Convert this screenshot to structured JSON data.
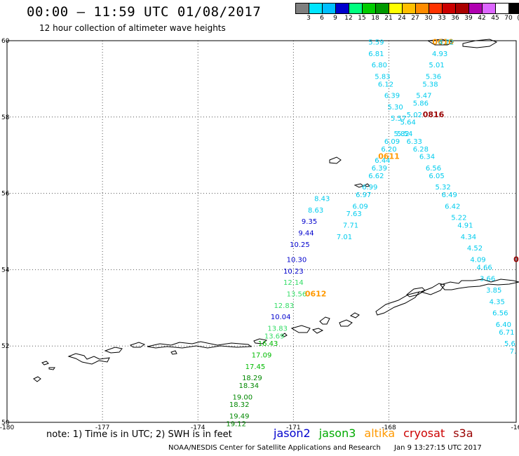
{
  "header": {
    "title": "00:00 – 11:59 UTC 01/08/2017",
    "subtitle": "12 hour collection of altimeter wave heights"
  },
  "colorbar": {
    "colors": [
      "#7f7f7f",
      "#00e5ff",
      "#00bfff",
      "#0000cd",
      "#00ff7f",
      "#00cc00",
      "#009900",
      "#ffff00",
      "#ffbf00",
      "#ff8c00",
      "#ff3300",
      "#cc0000",
      "#aa0000",
      "#b000b0",
      "#dd66ff",
      "#ffffff",
      "#000000"
    ],
    "labels": [
      "3",
      "6",
      "9",
      "12",
      "15",
      "18",
      "21",
      "24",
      "27",
      "30",
      "33",
      "36",
      "39",
      "42",
      "45",
      "70",
      "(ft)"
    ]
  },
  "axes": {
    "x_ticks": [
      "-180",
      "-177",
      "-174",
      "-171",
      "-168",
      "-16"
    ],
    "y_ticks": [
      "60",
      "58",
      "56",
      "54",
      "52",
      "50"
    ]
  },
  "chart_data": {
    "type": "scatter",
    "x_range": [
      -180,
      -164
    ],
    "y_range": [
      50,
      60
    ],
    "series": [
      {
        "name": "jason2",
        "values": [
          {
            "lon": -170.9,
            "lat": 54.2,
            "v": "10.30"
          },
          {
            "lon": -171.0,
            "lat": 53.9,
            "v": "10.23"
          },
          {
            "lon": -171.4,
            "lat": 52.7,
            "v": "10.04"
          },
          {
            "lon": -170.8,
            "lat": 54.6,
            "v": "10.25"
          },
          {
            "lon": -170.6,
            "lat": 54.9,
            "v": "9.44"
          },
          {
            "lon": -170.5,
            "lat": 55.2,
            "v": "9.35"
          },
          {
            "lon": -170.3,
            "lat": 55.5,
            "v": "8.63"
          },
          {
            "lon": -170.1,
            "lat": 55.8,
            "v": "8.43"
          }
        ]
      },
      {
        "name": "jason3",
        "values": [
          {
            "lon": -171.0,
            "lat": 53.6,
            "v": "12.14"
          },
          {
            "lon": -170.9,
            "lat": 53.3,
            "v": "13.56"
          },
          {
            "lon": -171.3,
            "lat": 53.0,
            "v": "12.83"
          },
          {
            "lon": -171.5,
            "lat": 52.4,
            "v": "13.83"
          },
          {
            "lon": -171.6,
            "lat": 52.2,
            "v": "13.69"
          },
          {
            "lon": -171.8,
            "lat": 52.0,
            "v": "16.43"
          },
          {
            "lon": -172.0,
            "lat": 51.7,
            "v": "17.09"
          },
          {
            "lon": -172.2,
            "lat": 51.4,
            "v": "17.45"
          },
          {
            "lon": -172.3,
            "lat": 51.1,
            "v": "18.29"
          },
          {
            "lon": -172.4,
            "lat": 50.9,
            "v": "18.34"
          },
          {
            "lon": -172.6,
            "lat": 50.6,
            "v": "19.00"
          },
          {
            "lon": -172.7,
            "lat": 50.4,
            "v": "18.32"
          },
          {
            "lon": -172.7,
            "lat": 50.1,
            "v": "19.49"
          },
          {
            "lon": -172.8,
            "lat": 49.9,
            "v": "19.12"
          }
        ]
      },
      {
        "name": "altika",
        "values": [
          {
            "lon": -170.3,
            "lat": 53.3,
            "v": "0612",
            "label": true
          },
          {
            "lon": -168.0,
            "lat": 56.9,
            "v": "0611",
            "label": true
          },
          {
            "lon": -166.3,
            "lat": 59.9,
            "v": "0610",
            "label": true
          }
        ]
      },
      {
        "name": "cryosat",
        "values": [
          {
            "lon": -166.6,
            "lat": 58.0,
            "v": "0816",
            "label": true
          },
          {
            "lon": -164.0,
            "lat": 54.2,
            "v": "0",
            "label": true
          }
        ]
      },
      {
        "name": "s3a",
        "values": [
          {
            "lon": -168.4,
            "lat": 59.9,
            "v": "5.59"
          },
          {
            "lon": -168.4,
            "lat": 59.6,
            "v": "6.81"
          },
          {
            "lon": -168.3,
            "lat": 59.3,
            "v": "6.80"
          },
          {
            "lon": -168.2,
            "lat": 59.0,
            "v": "5.83"
          },
          {
            "lon": -168.1,
            "lat": 58.8,
            "v": "6.12"
          },
          {
            "lon": -167.9,
            "lat": 58.5,
            "v": "6.39"
          },
          {
            "lon": -167.8,
            "lat": 58.2,
            "v": "5.30"
          },
          {
            "lon": -167.7,
            "lat": 57.9,
            "v": "5.57"
          },
          {
            "lon": -167.6,
            "lat": 57.5,
            "v": "5.82"
          },
          {
            "lon": -167.9,
            "lat": 57.3,
            "v": "6.09"
          },
          {
            "lon": -168.0,
            "lat": 57.1,
            "v": "6.20"
          },
          {
            "lon": -168.2,
            "lat": 56.8,
            "v": "6.44"
          },
          {
            "lon": -168.3,
            "lat": 56.6,
            "v": "6.39"
          },
          {
            "lon": -168.4,
            "lat": 56.4,
            "v": "6.62"
          },
          {
            "lon": -168.6,
            "lat": 56.1,
            "v": "6.99"
          },
          {
            "lon": -168.8,
            "lat": 55.9,
            "v": "6.97"
          },
          {
            "lon": -168.9,
            "lat": 55.6,
            "v": "6.09"
          },
          {
            "lon": -169.1,
            "lat": 55.4,
            "v": "7.63"
          },
          {
            "lon": -169.2,
            "lat": 55.1,
            "v": "7.71"
          },
          {
            "lon": -169.4,
            "lat": 54.8,
            "v": "7.01"
          },
          {
            "lon": -166.2,
            "lat": 59.9,
            "v": "4.72"
          },
          {
            "lon": -166.4,
            "lat": 59.6,
            "v": "4.93"
          },
          {
            "lon": -166.5,
            "lat": 59.3,
            "v": "5.01"
          },
          {
            "lon": -166.6,
            "lat": 59.0,
            "v": "5.36"
          },
          {
            "lon": -166.7,
            "lat": 58.8,
            "v": "5.38"
          },
          {
            "lon": -166.9,
            "lat": 58.5,
            "v": "5.47"
          },
          {
            "lon": -167.0,
            "lat": 58.3,
            "v": "5.86"
          },
          {
            "lon": -167.2,
            "lat": 58.0,
            "v": "5.02"
          },
          {
            "lon": -167.4,
            "lat": 57.8,
            "v": "5.64"
          },
          {
            "lon": -167.5,
            "lat": 57.5,
            "v": "5.54"
          },
          {
            "lon": -167.2,
            "lat": 57.3,
            "v": "6.33"
          },
          {
            "lon": -167.0,
            "lat": 57.1,
            "v": "6.28"
          },
          {
            "lon": -166.8,
            "lat": 56.9,
            "v": "6.34"
          },
          {
            "lon": -166.6,
            "lat": 56.6,
            "v": "6.56"
          },
          {
            "lon": -166.5,
            "lat": 56.4,
            "v": "6.05"
          },
          {
            "lon": -166.3,
            "lat": 56.1,
            "v": "5.32"
          },
          {
            "lon": -166.1,
            "lat": 55.9,
            "v": "6.49"
          },
          {
            "lon": -166.0,
            "lat": 55.6,
            "v": "6.42"
          },
          {
            "lon": -165.8,
            "lat": 55.3,
            "v": "5.22"
          },
          {
            "lon": -165.6,
            "lat": 55.1,
            "v": "4.91"
          },
          {
            "lon": -165.5,
            "lat": 54.8,
            "v": "4.34"
          },
          {
            "lon": -165.3,
            "lat": 54.5,
            "v": "4.52"
          },
          {
            "lon": -165.2,
            "lat": 54.2,
            "v": "4.09"
          },
          {
            "lon": -165.0,
            "lat": 54.0,
            "v": "4.66"
          },
          {
            "lon": -164.9,
            "lat": 53.7,
            "v": "3.66"
          },
          {
            "lon": -164.7,
            "lat": 53.4,
            "v": "3.85"
          },
          {
            "lon": -164.6,
            "lat": 53.1,
            "v": "4.35"
          },
          {
            "lon": -164.5,
            "lat": 52.8,
            "v": "6.56"
          },
          {
            "lon": -164.4,
            "lat": 52.5,
            "v": "6.40"
          },
          {
            "lon": -164.3,
            "lat": 52.3,
            "v": "6.71"
          },
          {
            "lon": -164.2,
            "lat": 52.0,
            "v": "5.6"
          },
          {
            "lon": -164.1,
            "lat": 51.8,
            "v": "7."
          }
        ]
      }
    ]
  },
  "note": "note: 1) Time is in UTC; 2) SWH is in feet",
  "legend": [
    {
      "label": "jason2",
      "color": "#0000cd"
    },
    {
      "label": "jason3",
      "color": "#00aa00"
    },
    {
      "label": "altika",
      "color": "#ff9900"
    },
    {
      "label": "cryosat",
      "color": "#cc0000"
    },
    {
      "label": "s3a",
      "color": "#990000"
    }
  ],
  "footer": {
    "credit": "NOAA/NESDIS Center for Satellite Applications and Research",
    "timestamp": "Jan  9 13:27:15 UTC 2017"
  }
}
